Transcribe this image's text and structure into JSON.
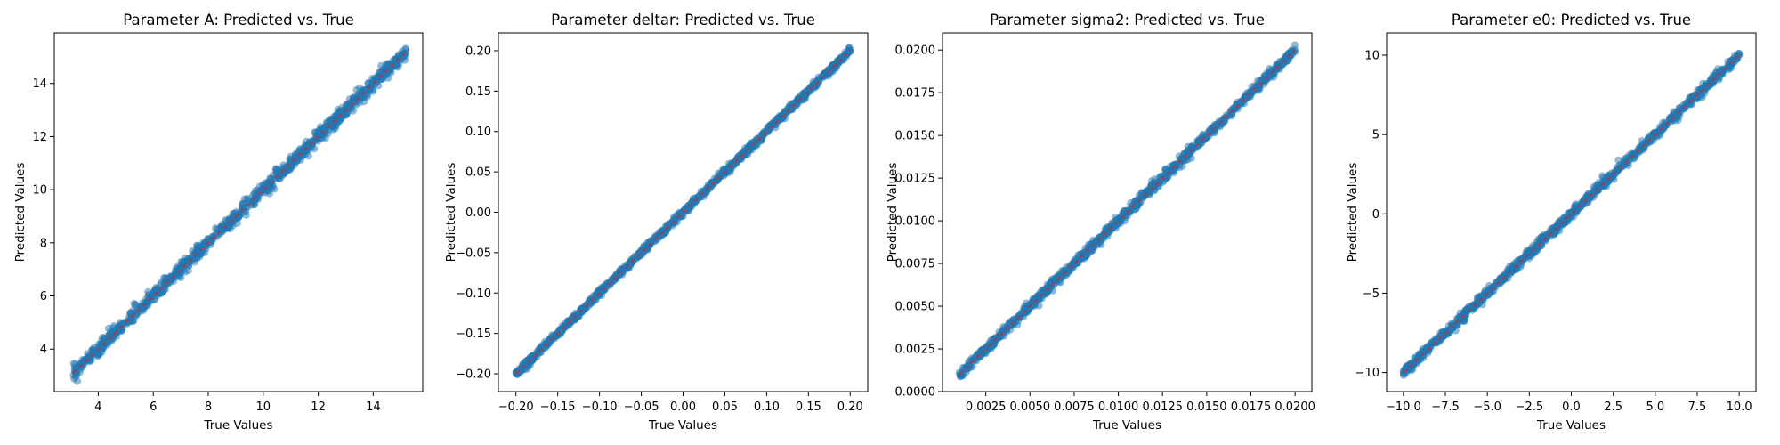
{
  "colors": {
    "points": "#1f77b4",
    "reference_line": "#d62728",
    "axes": "#000000",
    "background": "#ffffff"
  },
  "chart_data": [
    {
      "type": "scatter",
      "title": "Parameter A: Predicted vs. True",
      "xlabel": "True Values",
      "ylabel": "Predicted Values",
      "xlim": [
        2.4,
        15.8
      ],
      "ylim": [
        2.4,
        15.9
      ],
      "xticks": [
        4,
        6,
        8,
        10,
        12,
        14
      ],
      "xtick_labels": [
        "4",
        "6",
        "8",
        "10",
        "12",
        "14"
      ],
      "yticks": [
        4,
        6,
        8,
        10,
        12,
        14
      ],
      "ytick_labels": [
        "4",
        "6",
        "8",
        "10",
        "12",
        "14"
      ],
      "data_range": [
        3.1,
        15.2
      ],
      "reference_line": [
        3.1,
        15.3
      ],
      "noise_level": 0.13,
      "series": [
        {
          "x": [
            3.1,
            3.4,
            3.7,
            4.0,
            4.3,
            4.6,
            4.9,
            5.2,
            5.5,
            5.8,
            6.1,
            6.4,
            6.7,
            7.0,
            7.3,
            7.6,
            7.9,
            8.2,
            8.5,
            8.8,
            9.1,
            9.4,
            9.7,
            10.0,
            10.3,
            10.6,
            10.9,
            11.2,
            11.5,
            11.8,
            12.1,
            12.4,
            12.7,
            13.0,
            13.3,
            13.6,
            13.9,
            14.2,
            14.5,
            14.8,
            15.1
          ],
          "y": [
            3.02,
            3.45,
            3.66,
            4.08,
            4.25,
            4.63,
            4.95,
            5.14,
            5.56,
            5.77,
            6.16,
            6.35,
            6.72,
            7.05,
            7.26,
            7.63,
            7.88,
            8.25,
            8.46,
            8.83,
            9.07,
            9.46,
            9.65,
            10.04,
            10.28,
            10.64,
            10.86,
            11.25,
            11.47,
            11.85,
            12.06,
            12.45,
            12.66,
            13.06,
            13.27,
            13.65,
            13.85,
            14.27,
            14.44,
            14.85,
            15.06
          ]
        }
      ]
    },
    {
      "type": "scatter",
      "title": "Parameter deltar: Predicted vs. True",
      "xlabel": "True Values",
      "ylabel": "Predicted Values",
      "xlim": [
        -0.221,
        0.221
      ],
      "ylim": [
        -0.222,
        0.222
      ],
      "xticks": [
        -0.2,
        -0.15,
        -0.1,
        -0.05,
        0.0,
        0.05,
        0.1,
        0.15,
        0.2
      ],
      "xtick_labels": [
        "−0.20",
        "−0.15",
        "−0.10",
        "−0.05",
        "0.00",
        "0.05",
        "0.10",
        "0.15",
        "0.20"
      ],
      "yticks": [
        -0.2,
        -0.15,
        -0.1,
        -0.05,
        0.0,
        0.05,
        0.1,
        0.15,
        0.2
      ],
      "ytick_labels": [
        "−0.20",
        "−0.15",
        "−0.10",
        "−0.05",
        "0.00",
        "0.05",
        "0.10",
        "0.15",
        "0.20"
      ],
      "data_range": [
        -0.2,
        0.2
      ],
      "reference_line": [
        -0.2,
        0.2
      ],
      "noise_level": 0.0022,
      "series": [
        {
          "x": [
            -0.2,
            -0.19,
            -0.18,
            -0.17,
            -0.16,
            -0.15,
            -0.14,
            -0.13,
            -0.12,
            -0.11,
            -0.1,
            -0.09,
            -0.08,
            -0.07,
            -0.06,
            -0.05,
            -0.04,
            -0.03,
            -0.02,
            -0.01,
            0.0,
            0.01,
            0.02,
            0.03,
            0.04,
            0.05,
            0.06,
            0.07,
            0.08,
            0.09,
            0.1,
            0.11,
            0.12,
            0.13,
            0.14,
            0.15,
            0.16,
            0.17,
            0.18,
            0.19,
            0.2
          ],
          "y": [
            -0.198,
            -0.189,
            -0.181,
            -0.169,
            -0.161,
            -0.149,
            -0.14,
            -0.131,
            -0.119,
            -0.111,
            -0.099,
            -0.09,
            -0.081,
            -0.069,
            -0.061,
            -0.049,
            -0.041,
            -0.029,
            -0.021,
            -0.009,
            0.001,
            0.011,
            0.019,
            0.031,
            0.039,
            0.051,
            0.059,
            0.071,
            0.079,
            0.091,
            0.099,
            0.111,
            0.119,
            0.131,
            0.139,
            0.151,
            0.159,
            0.171,
            0.179,
            0.191,
            0.199
          ]
        }
      ]
    },
    {
      "type": "scatter",
      "title": "Parameter sigma2: Predicted vs. True",
      "xlabel": "True Values",
      "ylabel": "Predicted Values",
      "xlim": [
        5e-05,
        0.02095
      ],
      "ylim": [
        0.0,
        0.021
      ],
      "xticks": [
        0.0025,
        0.005,
        0.0075,
        0.01,
        0.0125,
        0.015,
        0.0175,
        0.02
      ],
      "xtick_labels": [
        "0.0025",
        "0.0050",
        "0.0075",
        "0.0100",
        "0.0125",
        "0.0150",
        "0.0175",
        "0.0200"
      ],
      "yticks": [
        0.0,
        0.0025,
        0.005,
        0.0075,
        0.01,
        0.0125,
        0.015,
        0.0175,
        0.02
      ],
      "ytick_labels": [
        "0.0000",
        "0.0025",
        "0.0050",
        "0.0075",
        "0.0100",
        "0.0125",
        "0.0150",
        "0.0175",
        "0.0200"
      ],
      "data_range": [
        0.001,
        0.02
      ],
      "reference_line": [
        0.001,
        0.02
      ],
      "noise_level": 0.00014,
      "series": [
        {
          "x": [
            0.001,
            0.0015,
            0.002,
            0.0025,
            0.003,
            0.0035,
            0.004,
            0.0045,
            0.005,
            0.0055,
            0.006,
            0.0065,
            0.007,
            0.0075,
            0.008,
            0.0085,
            0.009,
            0.0095,
            0.01,
            0.0105,
            0.011,
            0.0115,
            0.012,
            0.0125,
            0.013,
            0.0135,
            0.014,
            0.0145,
            0.015,
            0.0155,
            0.016,
            0.0165,
            0.017,
            0.0175,
            0.018,
            0.0185,
            0.019,
            0.0195,
            0.02
          ],
          "y": [
            0.0011,
            0.0014,
            0.0021,
            0.0024,
            0.0031,
            0.0035,
            0.004,
            0.0046,
            0.0049,
            0.0056,
            0.0059,
            0.0066,
            0.0069,
            0.0076,
            0.0079,
            0.0086,
            0.0089,
            0.0096,
            0.0099,
            0.0106,
            0.0109,
            0.0116,
            0.0119,
            0.0126,
            0.0129,
            0.0136,
            0.0139,
            0.0146,
            0.0149,
            0.0156,
            0.0159,
            0.0166,
            0.0169,
            0.0176,
            0.0179,
            0.0186,
            0.0189,
            0.0196,
            0.0199
          ]
        }
      ]
    },
    {
      "type": "scatter",
      "title": "Parameter e0: Predicted vs. True",
      "xlabel": "True Values",
      "ylabel": "Predicted Values",
      "xlim": [
        -11.0,
        11.0
      ],
      "ylim": [
        -11.2,
        11.4
      ],
      "xticks": [
        -10.0,
        -7.5,
        -5.0,
        -2.5,
        0.0,
        2.5,
        5.0,
        7.5,
        10.0
      ],
      "xtick_labels": [
        "−10.0",
        "−7.5",
        "−5.0",
        "−2.5",
        "0.0",
        "2.5",
        "5.0",
        "7.5",
        "10.0"
      ],
      "yticks": [
        -10,
        -5,
        0,
        5,
        10
      ],
      "ytick_labels": [
        "−10",
        "−5",
        "0",
        "5",
        "10"
      ],
      "data_range": [
        -10.0,
        10.0
      ],
      "reference_line": [
        -10.0,
        10.0
      ],
      "noise_level": 0.15,
      "series": [
        {
          "x": [
            -10.0,
            -9.5,
            -9.0,
            -8.5,
            -8.0,
            -7.5,
            -7.0,
            -6.5,
            -6.0,
            -5.5,
            -5.0,
            -4.5,
            -4.0,
            -3.5,
            -3.0,
            -2.5,
            -2.0,
            -1.5,
            -1.0,
            -0.5,
            0.0,
            0.5,
            1.0,
            1.5,
            2.0,
            2.5,
            3.0,
            3.5,
            4.0,
            4.5,
            5.0,
            5.5,
            6.0,
            6.5,
            7.0,
            7.5,
            8.0,
            8.5,
            9.0,
            9.5,
            10.0
          ],
          "y": [
            -9.9,
            -9.6,
            -8.9,
            -8.6,
            -7.9,
            -7.6,
            -6.9,
            -6.6,
            -5.9,
            -5.6,
            -4.9,
            -4.6,
            -3.9,
            -3.6,
            -2.9,
            -2.6,
            -1.9,
            -1.6,
            -0.9,
            -0.6,
            0.1,
            0.4,
            1.1,
            1.4,
            2.1,
            2.4,
            3.1,
            3.4,
            4.1,
            4.4,
            5.1,
            5.4,
            6.1,
            6.4,
            7.1,
            7.4,
            8.1,
            8.4,
            9.1,
            9.4,
            10.1
          ]
        }
      ]
    }
  ]
}
